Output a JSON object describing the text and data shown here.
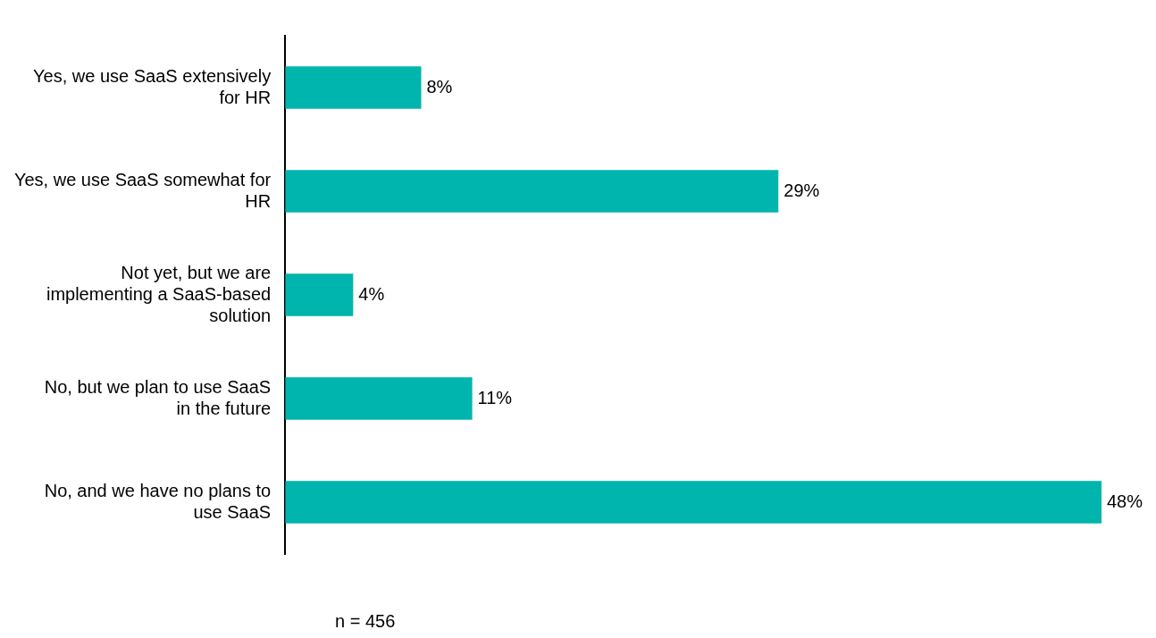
{
  "chart_data": {
    "type": "bar",
    "orientation": "horizontal",
    "categories": [
      "Yes, we use SaaS extensively for HR",
      "Yes, we use SaaS somewhat for HR",
      "Not yet, but we are implementing a SaaS-based solution",
      "No, but we plan to use SaaS in the future",
      "No, and we have no plans to use SaaS"
    ],
    "values": [
      8,
      29,
      4,
      11,
      48
    ],
    "color": "#00b5ad",
    "value_labels": [
      "8%",
      "29%",
      "4%",
      "11%",
      "48%"
    ],
    "tick_labels": "y",
    "grid": false,
    "legend": false,
    "annotations": [
      "n = 456"
    ]
  }
}
